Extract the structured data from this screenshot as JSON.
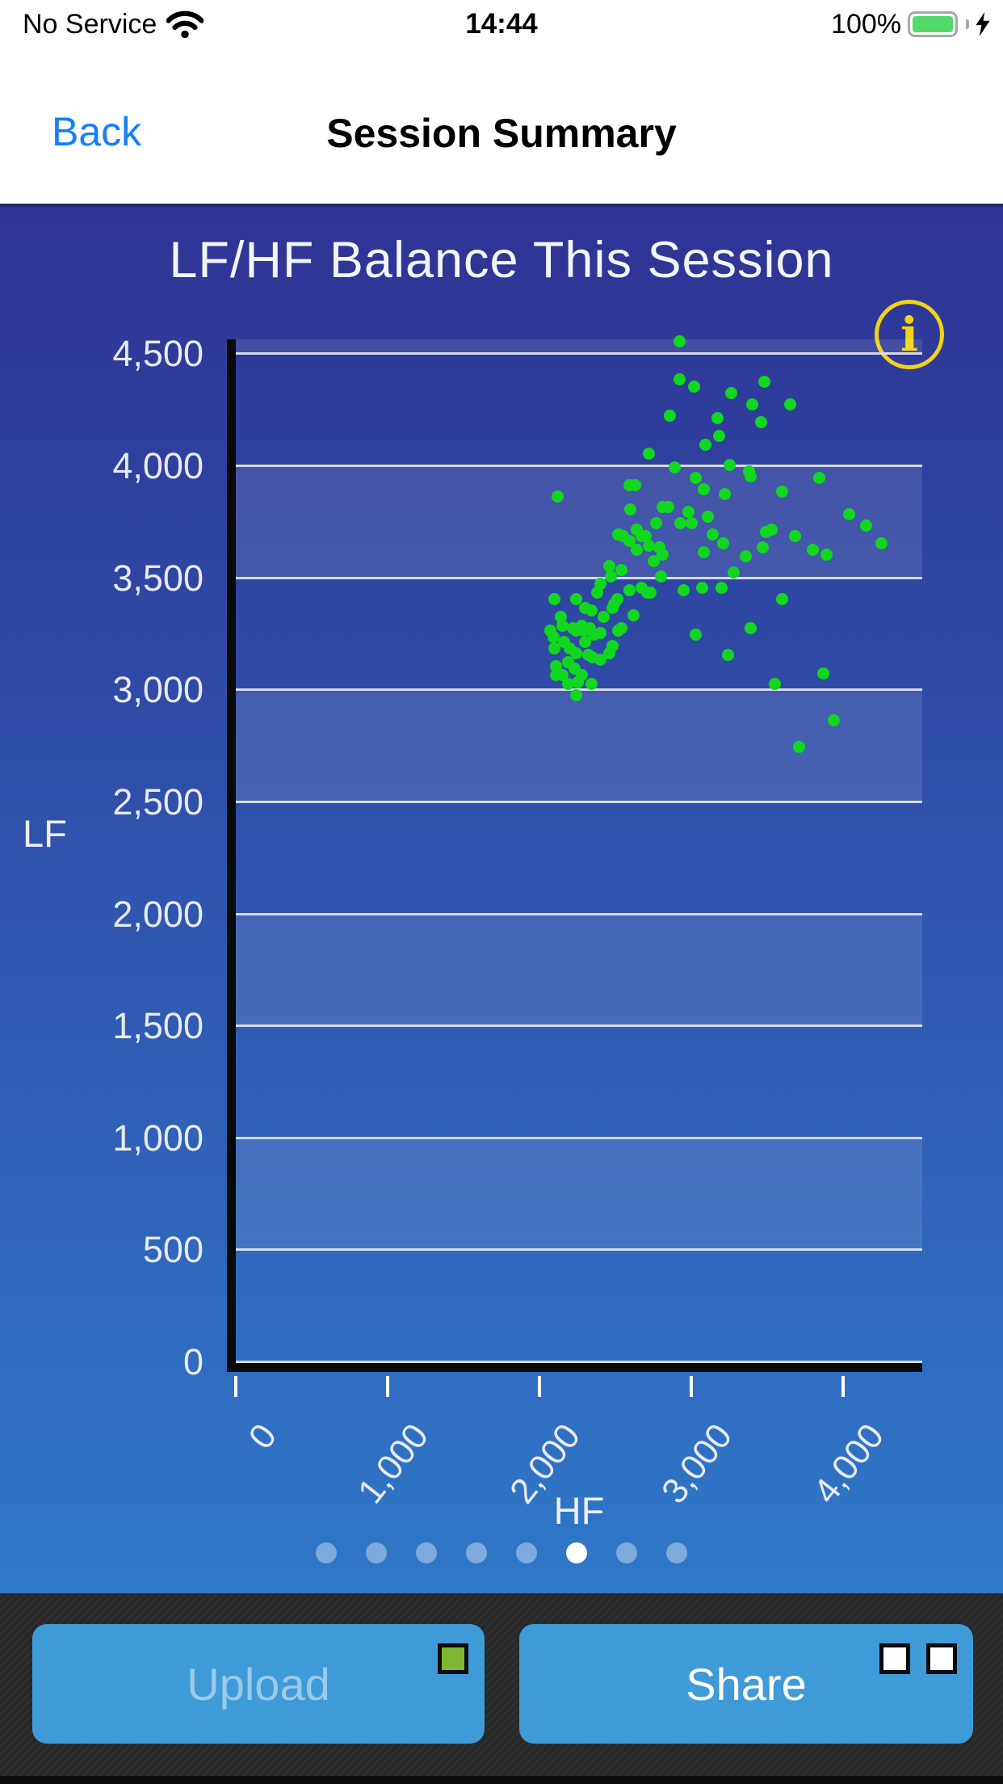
{
  "status_bar": {
    "carrier": "No Service",
    "time": "14:44",
    "battery_percent": "100%"
  },
  "nav_bar": {
    "back_label": "Back",
    "title": "Session Summary"
  },
  "icons": {
    "info_glyph": "i"
  },
  "chart_data": {
    "type": "scatter",
    "title": "LF/HF Balance This Session",
    "xlabel": "HF",
    "ylabel": "LF",
    "xlim": [
      0,
      4520
    ],
    "ylim": [
      0,
      4570
    ],
    "x_ticks": [
      0,
      1000,
      2000,
      3000,
      4000
    ],
    "x_tick_labels": [
      "0",
      "1,000",
      "2,000",
      "3,000",
      "4,000"
    ],
    "y_ticks": [
      0,
      500,
      1000,
      1500,
      2000,
      2500,
      3000,
      3500,
      4000,
      4500
    ],
    "y_tick_labels": [
      "0",
      "500",
      "1,000",
      "1,500",
      "2,000",
      "2,500",
      "3,000",
      "3,500",
      "4,000",
      "4,500"
    ],
    "grid": "horizontal-white-lines-with-alternating-bands",
    "legend": "none",
    "point_color": "#12D71F",
    "points": [
      [
        2920,
        4560
      ],
      [
        2920,
        4390
      ],
      [
        3020,
        4360
      ],
      [
        3260,
        4330
      ],
      [
        3480,
        4380
      ],
      [
        3400,
        4280
      ],
      [
        3650,
        4280
      ],
      [
        2860,
        4230
      ],
      [
        3170,
        4220
      ],
      [
        3460,
        4200
      ],
      [
        3180,
        4140
      ],
      [
        3090,
        4100
      ],
      [
        2720,
        4060
      ],
      [
        2890,
        4000
      ],
      [
        3250,
        4010
      ],
      [
        3380,
        3980
      ],
      [
        3390,
        3960
      ],
      [
        3030,
        3950
      ],
      [
        3840,
        3950
      ],
      [
        3080,
        3900
      ],
      [
        3220,
        3880
      ],
      [
        3600,
        3890
      ],
      [
        2120,
        3870
      ],
      [
        2590,
        3920
      ],
      [
        2630,
        3920
      ],
      [
        2810,
        3820
      ],
      [
        2850,
        3820
      ],
      [
        2600,
        3810
      ],
      [
        2980,
        3800
      ],
      [
        3000,
        3750
      ],
      [
        2930,
        3750
      ],
      [
        2770,
        3750
      ],
      [
        3110,
        3780
      ],
      [
        4040,
        3790
      ],
      [
        4150,
        3740
      ],
      [
        3140,
        3700
      ],
      [
        3210,
        3660
      ],
      [
        3490,
        3710
      ],
      [
        3530,
        3720
      ],
      [
        3470,
        3640
      ],
      [
        3680,
        3690
      ],
      [
        2520,
        3700
      ],
      [
        2550,
        3690
      ],
      [
        2590,
        3670
      ],
      [
        2640,
        3720
      ],
      [
        2670,
        3690
      ],
      [
        2700,
        3690
      ],
      [
        2720,
        3650
      ],
      [
        2640,
        3630
      ],
      [
        2790,
        3640
      ],
      [
        2810,
        3610
      ],
      [
        2750,
        3580
      ],
      [
        3080,
        3620
      ],
      [
        3360,
        3600
      ],
      [
        3800,
        3630
      ],
      [
        3890,
        3610
      ],
      [
        2460,
        3560
      ],
      [
        2540,
        3540
      ],
      [
        2470,
        3510
      ],
      [
        2400,
        3480
      ],
      [
        2800,
        3510
      ],
      [
        3280,
        3530
      ],
      [
        4250,
        3660
      ],
      [
        2380,
        3440
      ],
      [
        2510,
        3410
      ],
      [
        2590,
        3450
      ],
      [
        2670,
        3460
      ],
      [
        2710,
        3440
      ],
      [
        2730,
        3440
      ],
      [
        2950,
        3450
      ],
      [
        3070,
        3460
      ],
      [
        3200,
        3460
      ],
      [
        3600,
        3410
      ],
      [
        2100,
        3410
      ],
      [
        2240,
        3410
      ],
      [
        2300,
        3370
      ],
      [
        2340,
        3360
      ],
      [
        2490,
        3390
      ],
      [
        2480,
        3370
      ],
      [
        2420,
        3330
      ],
      [
        2620,
        3340
      ],
      [
        2140,
        3330
      ],
      [
        2150,
        3290
      ],
      [
        2070,
        3270
      ],
      [
        2090,
        3240
      ],
      [
        2220,
        3280
      ],
      [
        2240,
        3270
      ],
      [
        2280,
        3290
      ],
      [
        2290,
        3270
      ],
      [
        2330,
        3280
      ],
      [
        2360,
        3250
      ],
      [
        2400,
        3260
      ],
      [
        2540,
        3280
      ],
      [
        2520,
        3270
      ],
      [
        3030,
        3250
      ],
      [
        3390,
        3280
      ],
      [
        2100,
        3190
      ],
      [
        2160,
        3220
      ],
      [
        2200,
        3190
      ],
      [
        2240,
        3170
      ],
      [
        2300,
        3220
      ],
      [
        2320,
        3160
      ],
      [
        2350,
        3150
      ],
      [
        2400,
        3140
      ],
      [
        2460,
        3170
      ],
      [
        2480,
        3200
      ],
      [
        3240,
        3160
      ],
      [
        2110,
        3110
      ],
      [
        2190,
        3130
      ],
      [
        2230,
        3100
      ],
      [
        2110,
        3070
      ],
      [
        2150,
        3070
      ],
      [
        2190,
        3030
      ],
      [
        2250,
        3040
      ],
      [
        2280,
        3070
      ],
      [
        2340,
        3030
      ],
      [
        2240,
        2980
      ],
      [
        3870,
        3080
      ],
      [
        3550,
        3030
      ],
      [
        3940,
        2870
      ],
      [
        3710,
        2750
      ]
    ]
  },
  "page_indicator": {
    "count": 8,
    "active_index": 5
  },
  "bottom_bar": {
    "upload_label": "Upload",
    "share_label": "Share"
  },
  "colors": {
    "background_top": "#2F3394",
    "background_bottom": "#2F78C8",
    "point_green": "#12D71F",
    "info_yellow": "#F2D414",
    "back_blue": "#157EFB",
    "button_blue": "#3E9BD8",
    "battery_green": "#53D86A",
    "toolbar_dark": "#292929"
  }
}
